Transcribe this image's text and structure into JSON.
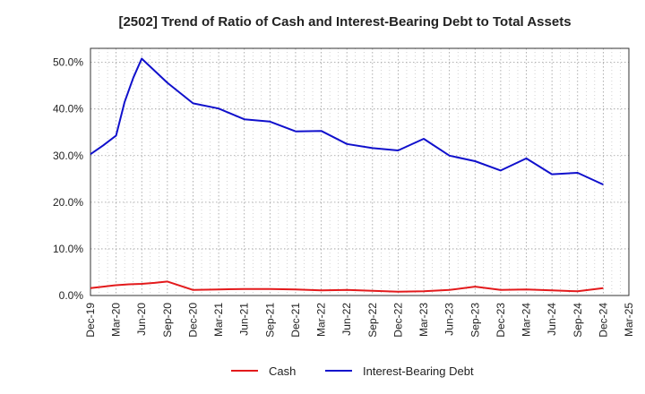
{
  "chart_data": {
    "type": "line",
    "title": "[2502]  Trend of Ratio of Cash and Interest-Bearing Debt to Total Assets",
    "xlabel": "",
    "ylabel": "",
    "categories": [
      "Dec-19",
      "Mar-20",
      "Jun-20",
      "Sep-20",
      "Dec-20",
      "Mar-21",
      "Jun-21",
      "Sep-21",
      "Dec-21",
      "Mar-22",
      "Jun-22",
      "Sep-22",
      "Dec-22",
      "Mar-23",
      "Jun-23",
      "Sep-23",
      "Dec-23",
      "Mar-24",
      "Jun-24",
      "Sep-24",
      "Dec-24",
      "Mar-25"
    ],
    "ylim": [
      0,
      53
    ],
    "yticks": [
      0,
      10,
      20,
      30,
      40,
      50
    ],
    "ytick_labels": [
      "0.0%",
      "10.0%",
      "20.0%",
      "30.0%",
      "40.0%",
      "50.0%"
    ],
    "grid": true,
    "legend_position": "bottom",
    "series": [
      {
        "name": "Cash",
        "color": "#e31a1c",
        "points": [
          [
            0,
            1.6
          ],
          [
            0.5,
            1.9
          ],
          [
            1,
            2.2
          ],
          [
            1.5,
            2.4
          ],
          [
            2,
            2.5
          ],
          [
            2.5,
            2.7
          ],
          [
            3,
            3.0
          ],
          [
            4,
            1.2
          ],
          [
            5,
            1.3
          ],
          [
            6,
            1.4
          ],
          [
            7,
            1.4
          ],
          [
            8,
            1.3
          ],
          [
            9,
            1.1
          ],
          [
            10,
            1.2
          ],
          [
            11,
            1.0
          ],
          [
            12,
            0.8
          ],
          [
            13,
            0.9
          ],
          [
            14,
            1.2
          ],
          [
            15,
            1.9
          ],
          [
            16,
            1.2
          ],
          [
            17,
            1.3
          ],
          [
            18,
            1.1
          ],
          [
            19,
            0.9
          ],
          [
            20,
            1.6
          ]
        ]
      },
      {
        "name": "Interest-Bearing Debt",
        "color": "#1010cc",
        "points": [
          [
            0,
            30.3
          ],
          [
            0.5,
            32.2
          ],
          [
            1,
            34.3
          ],
          [
            1.33,
            41.5
          ],
          [
            1.67,
            46.7
          ],
          [
            2,
            50.8
          ],
          [
            3,
            45.6
          ],
          [
            4,
            41.2
          ],
          [
            5,
            40.1
          ],
          [
            6,
            37.8
          ],
          [
            7,
            37.3
          ],
          [
            8,
            35.2
          ],
          [
            9,
            35.3
          ],
          [
            10,
            32.5
          ],
          [
            11,
            31.6
          ],
          [
            12,
            31.1
          ],
          [
            13,
            33.6
          ],
          [
            14,
            30.0
          ],
          [
            15,
            28.8
          ],
          [
            16,
            26.8
          ],
          [
            17,
            29.4
          ],
          [
            18,
            26.0
          ],
          [
            19,
            26.3
          ],
          [
            20,
            23.8
          ]
        ]
      }
    ]
  }
}
